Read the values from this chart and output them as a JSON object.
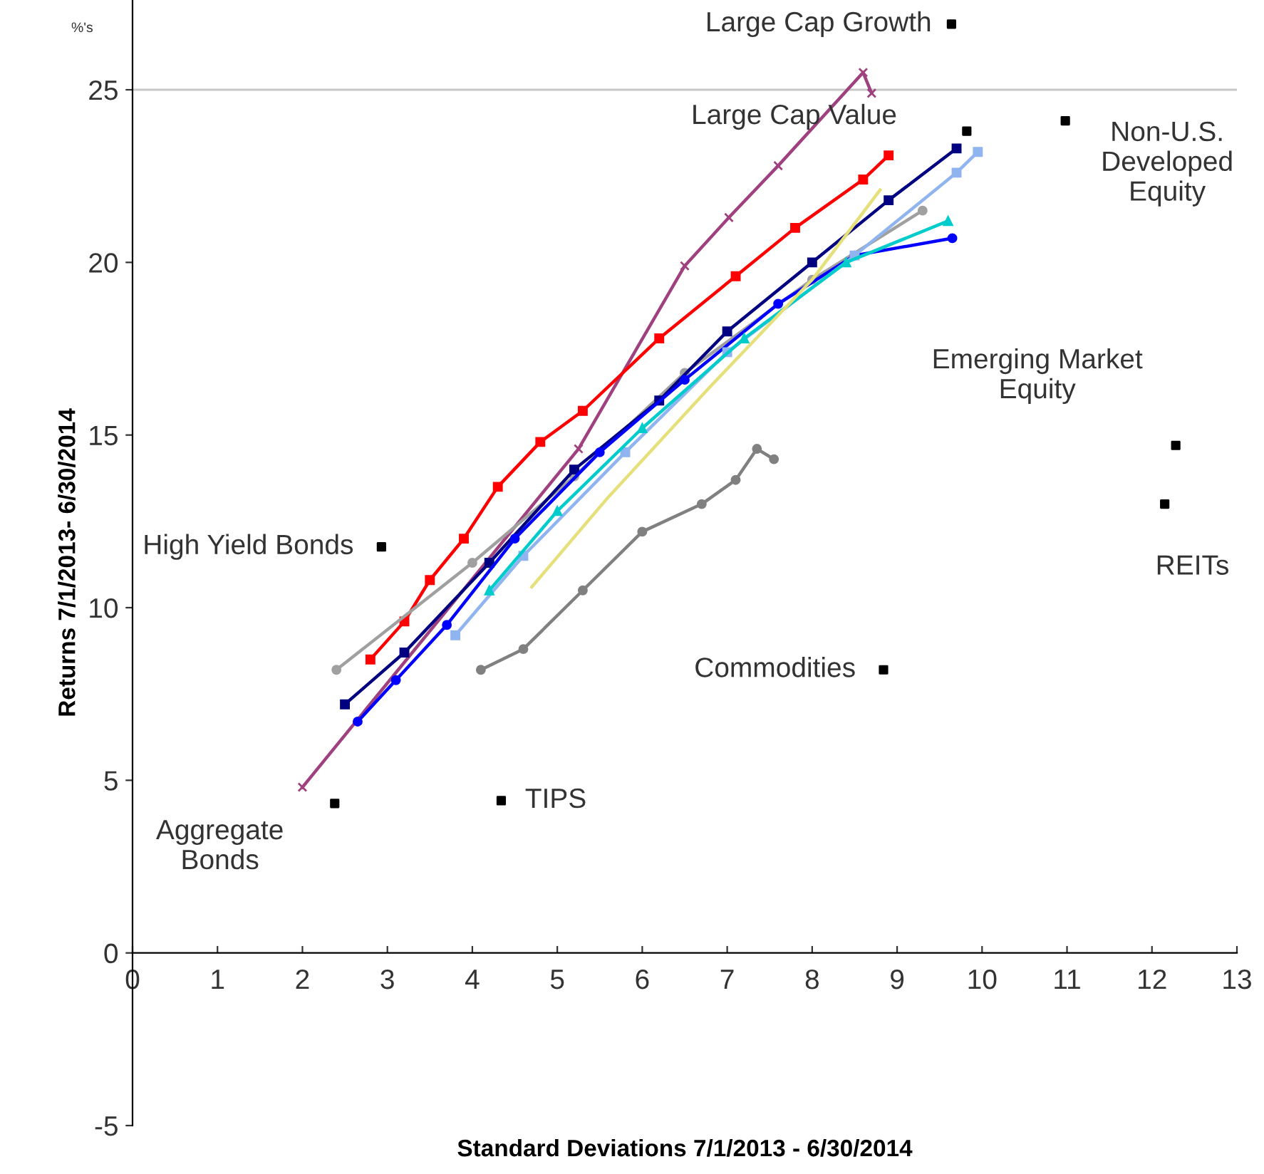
{
  "chart_data": {
    "type": "line",
    "xlabel": "Standard Deviations 7/1/2013 - 6/30/2014",
    "ylabel": "Returns 7/1/2013- 6/30/2014",
    "xlim": [
      0,
      13
    ],
    "ylim": [
      -5,
      27.6
    ],
    "xticks": [
      0,
      1,
      2,
      3,
      4,
      5,
      6,
      7,
      8,
      9,
      10,
      11,
      12,
      13
    ],
    "yticks": [
      -5,
      0,
      5,
      10,
      15,
      20,
      25
    ],
    "grid": false,
    "ref_lines": [
      {
        "axis": "y",
        "value": 25,
        "color": "#c8c8c8"
      }
    ],
    "series": [
      {
        "color": "#a0417f",
        "marker": "cross",
        "x": [
          2.0,
          5.25,
          6.5,
          7.02,
          7.6,
          8.6,
          8.7
        ],
        "values": [
          4.8,
          14.6,
          19.9,
          21.3,
          22.8,
          25.5,
          24.9
        ]
      },
      {
        "color": "#ff0000",
        "marker": "square",
        "x": [
          2.8,
          3.2,
          3.5,
          3.9,
          4.3,
          4.8,
          5.3,
          6.2,
          7.1,
          7.8,
          8.6,
          8.9
        ],
        "values": [
          8.5,
          9.6,
          10.8,
          12.0,
          13.5,
          14.8,
          15.7,
          17.8,
          19.6,
          21.0,
          22.4,
          23.1
        ]
      },
      {
        "color": "#808080",
        "marker": "circle",
        "x": [
          4.1,
          4.6,
          5.3,
          6.0,
          6.7,
          7.1,
          7.35,
          7.55
        ],
        "values": [
          8.2,
          8.8,
          10.5,
          12.2,
          13.0,
          13.7,
          14.6,
          14.3
        ]
      },
      {
        "color": "#a0a0a0",
        "marker": "circle",
        "x": [
          2.4,
          4.0,
          5.2,
          6.5,
          8.0,
          9.3
        ],
        "values": [
          8.2,
          11.3,
          13.8,
          16.8,
          19.5,
          21.5
        ]
      },
      {
        "color": "#000080",
        "marker": "square",
        "x": [
          2.5,
          3.2,
          4.2,
          5.2,
          6.2,
          7.0,
          8.0,
          8.9,
          9.7
        ],
        "values": [
          7.2,
          8.7,
          11.3,
          14.0,
          16.0,
          18.0,
          20.0,
          21.8,
          23.3
        ]
      },
      {
        "color": "#0000ff",
        "marker": "circle",
        "x": [
          2.65,
          3.1,
          3.7,
          4.5,
          5.5,
          6.5,
          7.6,
          8.5,
          9.65
        ],
        "values": [
          6.7,
          7.9,
          9.5,
          12.0,
          14.5,
          16.6,
          18.8,
          20.2,
          20.7
        ]
      },
      {
        "color": "#8fb4f0",
        "marker": "square",
        "x": [
          3.8,
          4.6,
          5.8,
          7.0,
          8.5,
          9.7,
          9.95
        ],
        "values": [
          9.2,
          11.5,
          14.5,
          17.4,
          20.2,
          22.6,
          23.2
        ]
      },
      {
        "color": "#00cccc",
        "marker": "triangle",
        "x": [
          4.2,
          5.0,
          6.0,
          7.2,
          8.4,
          9.6
        ],
        "values": [
          10.5,
          12.8,
          15.2,
          17.8,
          20.0,
          21.2
        ]
      },
      {
        "color": "#e6e07a",
        "marker": "none",
        "x": [
          4.7,
          5.6,
          6.8,
          8.0,
          8.8
        ],
        "values": [
          10.6,
          13.2,
          16.4,
          19.5,
          22.1
        ]
      },
      {
        "type": "scatter",
        "color": "#000000",
        "marker": "square",
        "x": [
          9.64,
          9.82,
          10.98,
          12.28,
          12.15,
          2.93,
          8.84,
          2.38,
          4.34
        ],
        "values": [
          26.9,
          23.8,
          24.1,
          14.7,
          13.0,
          11.76,
          8.2,
          4.33,
          4.41
        ]
      }
    ],
    "annotations": [
      {
        "text": "Large Cap Growth",
        "x": 9.64,
        "y": 26.9
      },
      "Large Cap Value",
      {
        "text": "Non-U.S.\nDeveloped\nEquity",
        "x": 10.98,
        "y": 24.1
      },
      {
        "text": "Emerging Market\nEquity",
        "x": 12.28,
        "y": 14.7
      },
      {
        "text": "REITs",
        "x": 12.15,
        "y": 13.0
      },
      {
        "text": "High Yield Bonds",
        "x": 2.93,
        "y": 11.76
      },
      {
        "text": "Commodities",
        "x": 8.84,
        "y": 8.2
      },
      {
        "text": "Aggregate\nBonds",
        "x": 2.38,
        "y": 4.33
      },
      {
        "text": "TIPS",
        "x": 4.34,
        "y": 4.41
      },
      "%'s"
    ]
  }
}
